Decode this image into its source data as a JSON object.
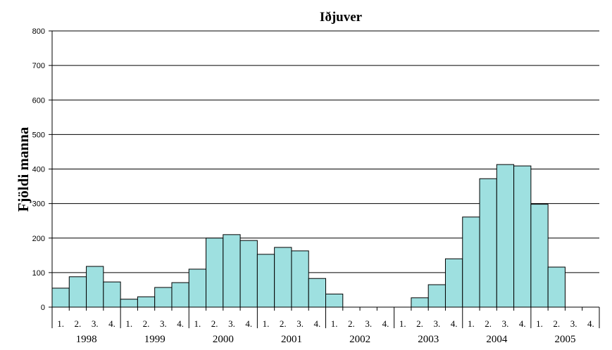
{
  "chart_data": {
    "type": "bar",
    "title": "Iðjuver",
    "xlabel": "",
    "ylabel": "Fjöldi manna",
    "ylim": [
      0,
      800
    ],
    "yticks": [
      0,
      100,
      200,
      300,
      400,
      500,
      600,
      700,
      800
    ],
    "grid": true,
    "bar_color": "#9EE0E0",
    "years": [
      "1998",
      "1999",
      "2000",
      "2001",
      "2002",
      "2003",
      "2004",
      "2005"
    ],
    "quarter_labels": [
      "1.",
      "2.",
      "3.",
      "4."
    ],
    "categories": [
      "1998 1.",
      "1998 2.",
      "1998 3.",
      "1998 4.",
      "1999 1.",
      "1999 2.",
      "1999 3.",
      "1999 4.",
      "2000 1.",
      "2000 2.",
      "2000 3.",
      "2000 4.",
      "2001 1.",
      "2001 2.",
      "2001 3.",
      "2001 4.",
      "2002 1.",
      "2002 2.",
      "2002 3.",
      "2002 4.",
      "2003 1.",
      "2003 2.",
      "2003 3.",
      "2003 4.",
      "2004 1.",
      "2004 2.",
      "2004 3.",
      "2004 4.",
      "2005 1.",
      "2005 2.",
      "2005 3.",
      "2005 4."
    ],
    "values": [
      55,
      88,
      118,
      73,
      23,
      30,
      57,
      71,
      110,
      200,
      210,
      193,
      153,
      173,
      163,
      83,
      38,
      0,
      0,
      0,
      0,
      27,
      65,
      140,
      261,
      372,
      413,
      409,
      298,
      116,
      0,
      0
    ]
  }
}
